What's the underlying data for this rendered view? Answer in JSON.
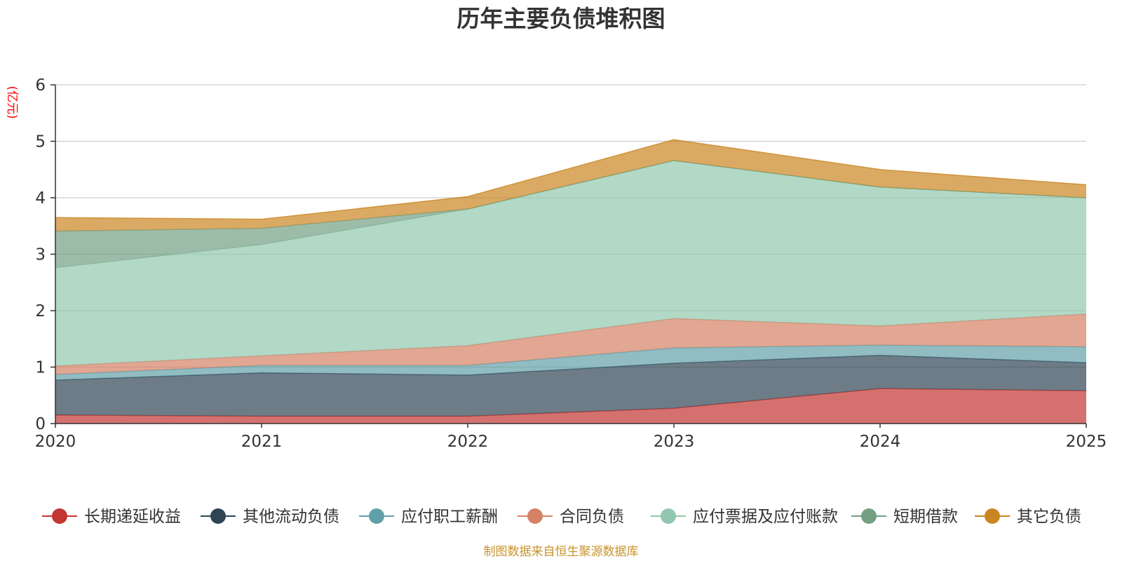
{
  "chart_data": {
    "type": "area",
    "stacked": true,
    "title": "历年主要负债堆积图",
    "ylabel": "(亿元)",
    "xlabel": "",
    "categories": [
      "2020",
      "2021",
      "2022",
      "2023",
      "2024",
      "2025"
    ],
    "ylim": [
      0,
      6
    ],
    "yticks": [
      0,
      1,
      2,
      3,
      4,
      5,
      6
    ],
    "grid": true,
    "legend_position": "bottom",
    "series": [
      {
        "name": "长期递延收益",
        "color": "#c23531",
        "values": [
          0.15,
          0.13,
          0.13,
          0.27,
          0.62,
          0.58
        ]
      },
      {
        "name": "其他流动负债",
        "color": "#2f4554",
        "values": [
          0.62,
          0.77,
          0.73,
          0.8,
          0.59,
          0.5
        ]
      },
      {
        "name": "应付职工薪酬",
        "color": "#61a0a8",
        "values": [
          0.1,
          0.13,
          0.17,
          0.27,
          0.18,
          0.28
        ]
      },
      {
        "name": "合同负债",
        "color": "#d48265",
        "values": [
          0.15,
          0.17,
          0.35,
          0.52,
          0.34,
          0.58
        ]
      },
      {
        "name": "应付票据及应付账款",
        "color": "#91c7ae",
        "values": [
          1.74,
          1.97,
          2.42,
          2.8,
          2.46,
          2.06
        ]
      },
      {
        "name": "短期借款",
        "color": "#749f83",
        "values": [
          0.65,
          0.29,
          0.0,
          0.0,
          0.0,
          0.0
        ]
      },
      {
        "name": "其它负债",
        "color": "#ca8622",
        "values": [
          0.24,
          0.16,
          0.22,
          0.37,
          0.31,
          0.23
        ]
      }
    ],
    "source": "制图数据来自恒生聚源数据库"
  }
}
